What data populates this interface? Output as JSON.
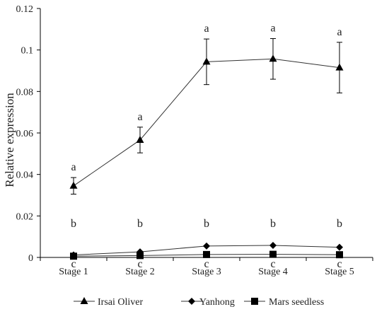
{
  "chart_data": {
    "type": "line",
    "title": "",
    "xlabel": "",
    "ylabel": "Relative expression",
    "categories": [
      "Stage 1",
      "Stage 2",
      "Stage 3",
      "Stage 4",
      "Stage 5"
    ],
    "ylim": [
      0,
      0.12
    ],
    "yticks": [
      "0",
      "0.02",
      "0.04",
      "0.06",
      "0.08",
      "0.1",
      "0.12"
    ],
    "ytick_values": [
      0,
      0.02,
      0.04,
      0.06,
      0.08,
      0.1,
      0.12
    ],
    "grid": false,
    "legend_position": "bottom",
    "series": [
      {
        "name": "Irsai Oliver",
        "marker": "triangle",
        "values": [
          0.0345,
          0.0566,
          0.0943,
          0.0957,
          0.0915
        ],
        "errors": [
          0.004,
          0.0062,
          0.011,
          0.0098,
          0.0122
        ],
        "labels": [
          "a",
          "a",
          "a",
          "a",
          "a"
        ]
      },
      {
        "name": "Yanhong",
        "marker": "diamond",
        "values": [
          0.0012,
          0.0027,
          0.0055,
          0.0058,
          0.0049
        ],
        "errors": [
          0,
          0,
          0,
          0,
          0
        ],
        "labels": [
          "b",
          "b",
          "b",
          "b",
          "b"
        ]
      },
      {
        "name": "Mars seedless",
        "marker": "square",
        "values": [
          0.0006,
          0.0009,
          0.0014,
          0.0015,
          0.0013
        ],
        "errors": [
          0,
          0,
          0,
          0,
          0
        ],
        "labels": [
          "c",
          "c",
          "c",
          "c",
          "c"
        ]
      }
    ],
    "colors": {
      "line": "#333333",
      "marker": "#000000",
      "text": "#222222"
    }
  }
}
